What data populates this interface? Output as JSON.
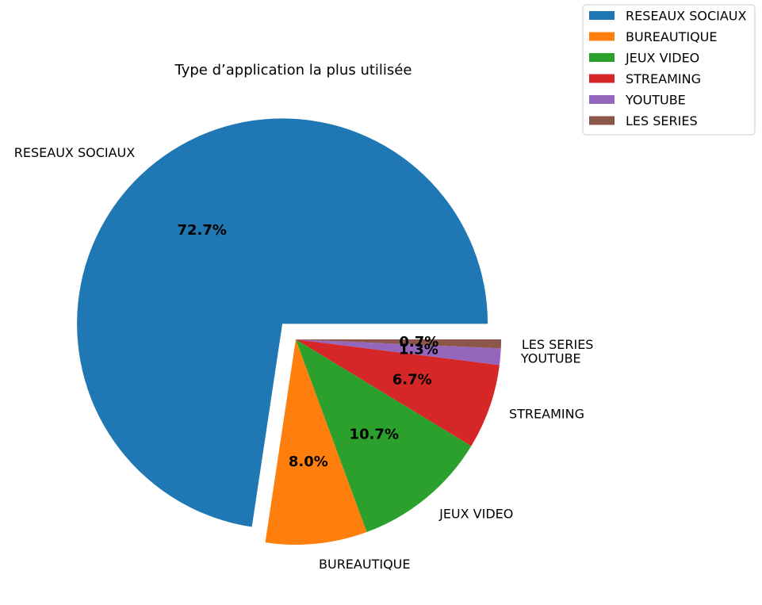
{
  "chart_data": {
    "type": "pie",
    "title": "Type d’application la plus utilisée",
    "categories": [
      "RESEAUX SOCIAUX",
      "BUREAUTIQUE",
      "JEUX VIDEO",
      "STREAMING",
      "YOUTUBE",
      "LES SERIES"
    ],
    "values": [
      72.7,
      8.0,
      10.7,
      6.7,
      1.3,
      0.7
    ],
    "value_labels": [
      "72.7%",
      "8.0%",
      "10.7%",
      "6.7%",
      "1.3%",
      "0.7%"
    ],
    "colors": [
      "#1f77b4",
      "#ff7f0e",
      "#2ca02c",
      "#d62728",
      "#9467bd",
      "#8c564b"
    ],
    "exploded": [
      "RESEAUX SOCIAUX"
    ],
    "start_angle_deg": 0,
    "direction": "counterclockwise",
    "legend": {
      "position": "top-right",
      "entries": [
        "RESEAUX SOCIAUX",
        "BUREAUTIQUE",
        "JEUX VIDEO",
        "STREAMING",
        "YOUTUBE",
        "LES SERIES"
      ]
    }
  }
}
